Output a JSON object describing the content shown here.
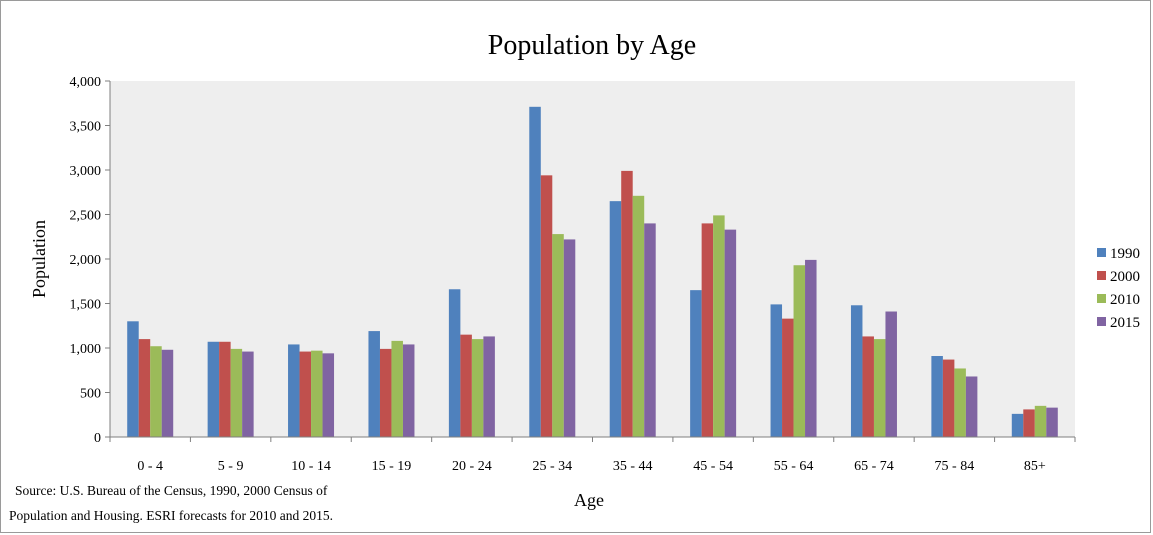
{
  "chart_data": {
    "type": "bar",
    "title": "Population by Age",
    "xlabel": "Age",
    "ylabel": "Population",
    "categories": [
      "0 - 4",
      "5 - 9",
      "10 - 14",
      "15 - 19",
      "20 - 24",
      "25 - 34",
      "35 - 44",
      "45 - 54",
      "55 - 64",
      "65 - 74",
      "75 - 84",
      "85+"
    ],
    "ylim": [
      0,
      4000
    ],
    "yticks": [
      "0",
      "500",
      "1,000",
      "1,500",
      "2,000",
      "2,500",
      "3,000",
      "3,500",
      "4,000"
    ],
    "ytick_values": [
      0,
      500,
      1000,
      1500,
      2000,
      2500,
      3000,
      3500,
      4000
    ],
    "grid": false,
    "legend_position": "right",
    "plot_background": "#eeeeee",
    "series": [
      {
        "name": "1990",
        "color": "#4f81bd",
        "values": [
          1300,
          1070,
          1040,
          1190,
          1660,
          3710,
          2650,
          1650,
          1490,
          1480,
          910,
          260
        ]
      },
      {
        "name": "2000",
        "color": "#c0504d",
        "values": [
          1100,
          1070,
          960,
          990,
          1150,
          2940,
          2990,
          2400,
          1330,
          1130,
          870,
          310
        ]
      },
      {
        "name": "2010",
        "color": "#9bbb59",
        "values": [
          1020,
          990,
          970,
          1080,
          1100,
          2280,
          2710,
          2490,
          1930,
          1100,
          770,
          350
        ]
      },
      {
        "name": "2015",
        "color": "#8064a2",
        "values": [
          980,
          960,
          940,
          1040,
          1130,
          2220,
          2400,
          2330,
          1990,
          1410,
          680,
          330
        ]
      }
    ],
    "source_lines": [
      "Source: U.S.  Bureau of the Census, 1990, 2000 Census of",
      "Population and Housing. ESRI forecasts for 2010 and 2015."
    ]
  }
}
